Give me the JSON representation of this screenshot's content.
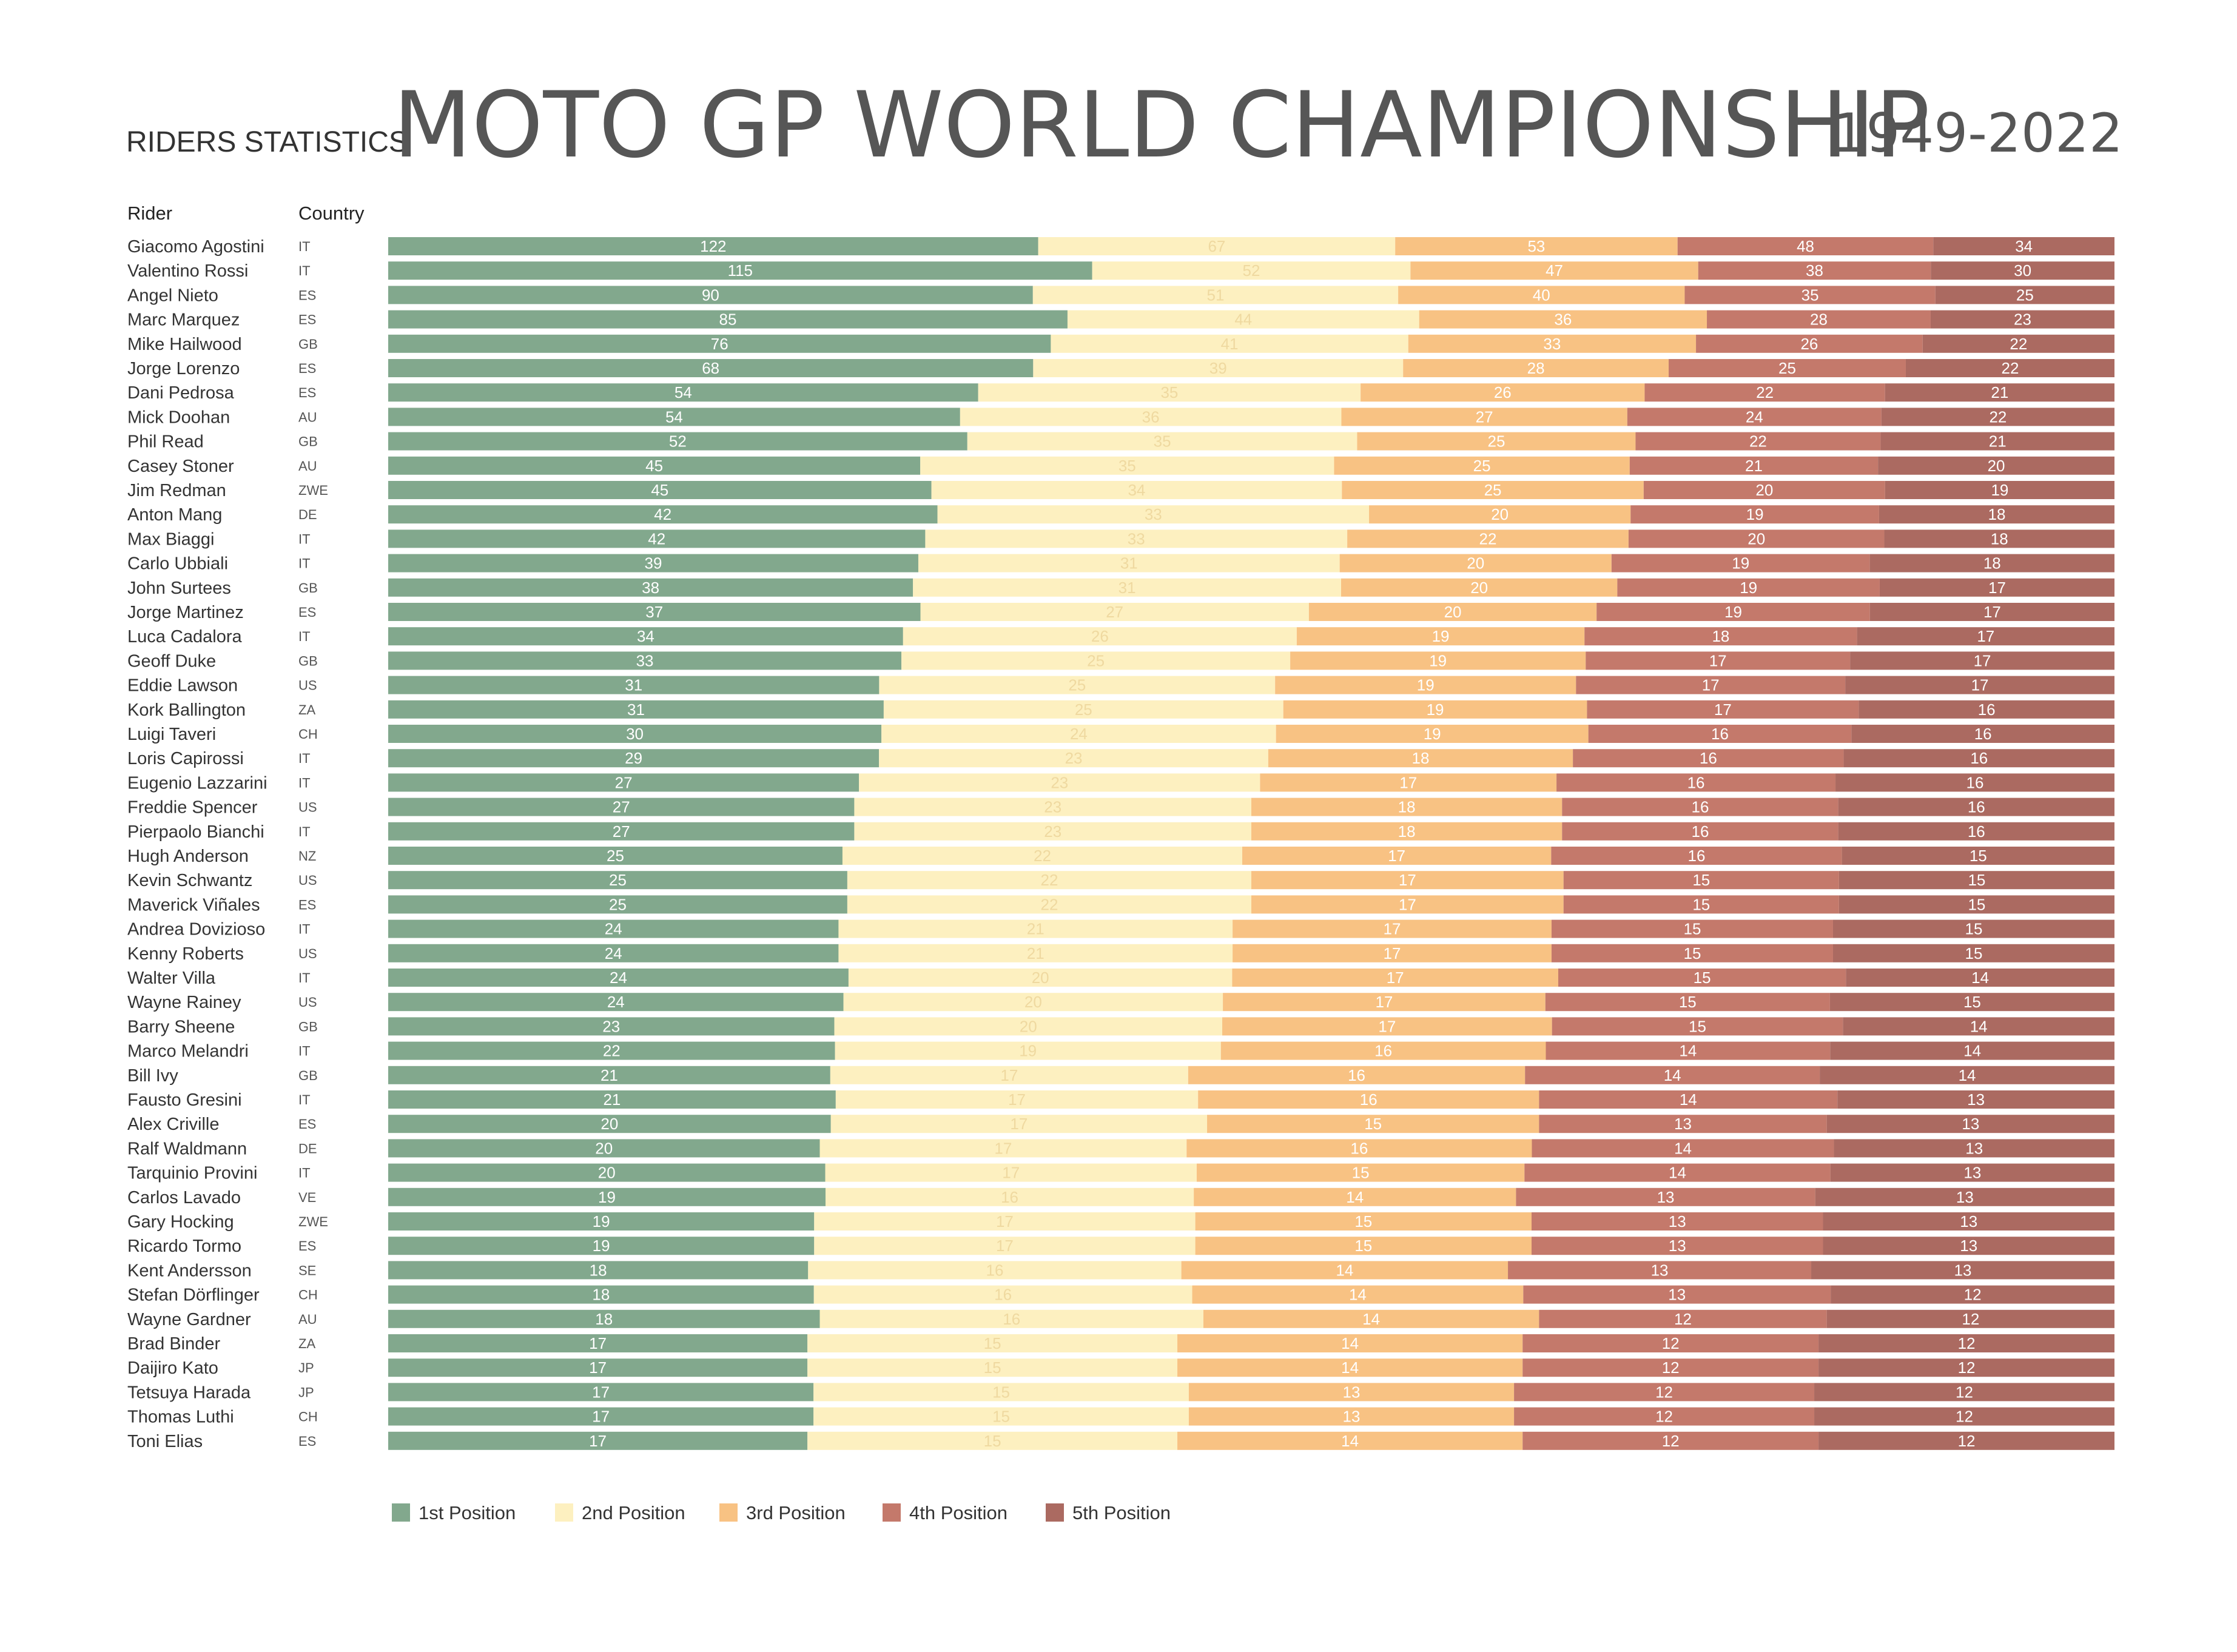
{
  "header": {
    "subtitle": "RIDERS STATISTICS",
    "title": "MOTO GP WORLD CHAMPIONSHIP",
    "years": "1949-2022"
  },
  "columns": {
    "rider": "Rider",
    "country": "Country"
  },
  "colors": {
    "1st Position": "#82a88d",
    "2nd Position": "#fdf0c0",
    "3rd Position": "#f8c283",
    "4th Position": "#c4796b",
    "5th Position": "#ab6a61",
    "title": "#565656",
    "text": "#333333",
    "label_dark": "#ffffff",
    "label_light": "#efd9a0"
  },
  "chart_data": {
    "type": "bar",
    "orientation": "horizontal",
    "stacking": "normalized-100%",
    "series": [
      {
        "name": "1st Position",
        "values": [
          122,
          115,
          90,
          85,
          76,
          68,
          54,
          54,
          52,
          45,
          45,
          42,
          42,
          39,
          38,
          37,
          34,
          33,
          31,
          31,
          30,
          29,
          27,
          27,
          27,
          25,
          25,
          25,
          24,
          24,
          24,
          24,
          23,
          22,
          21,
          21,
          20,
          20,
          20,
          19,
          19,
          19,
          18,
          18,
          18,
          17,
          17,
          17,
          17,
          17
        ]
      },
      {
        "name": "2nd Position",
        "values": [
          67,
          52,
          51,
          44,
          41,
          39,
          35,
          36,
          35,
          35,
          34,
          33,
          33,
          31,
          31,
          27,
          26,
          25,
          25,
          25,
          24,
          23,
          23,
          23,
          23,
          22,
          22,
          22,
          21,
          21,
          20,
          20,
          20,
          19,
          17,
          17,
          17,
          17,
          17,
          16,
          17,
          17,
          16,
          16,
          16,
          15,
          15,
          15,
          15,
          15
        ]
      },
      {
        "name": "3rd Position",
        "values": [
          53,
          47,
          40,
          36,
          33,
          28,
          26,
          27,
          25,
          25,
          25,
          20,
          22,
          20,
          20,
          20,
          19,
          19,
          19,
          19,
          19,
          18,
          17,
          18,
          18,
          17,
          17,
          17,
          17,
          17,
          17,
          17,
          17,
          16,
          16,
          16,
          15,
          16,
          15,
          14,
          15,
          15,
          14,
          14,
          14,
          14,
          14,
          13,
          13,
          14
        ]
      },
      {
        "name": "4th Position",
        "values": [
          48,
          38,
          35,
          28,
          26,
          25,
          22,
          24,
          22,
          21,
          20,
          19,
          20,
          19,
          19,
          19,
          18,
          17,
          17,
          17,
          16,
          16,
          16,
          16,
          16,
          16,
          15,
          15,
          15,
          15,
          15,
          15,
          15,
          14,
          14,
          14,
          13,
          14,
          14,
          13,
          13,
          13,
          13,
          13,
          12,
          12,
          12,
          12,
          12,
          12
        ]
      },
      {
        "name": "5th Position",
        "values": [
          34,
          30,
          25,
          23,
          22,
          22,
          21,
          22,
          21,
          20,
          19,
          18,
          18,
          18,
          17,
          17,
          17,
          17,
          17,
          16,
          16,
          16,
          16,
          16,
          16,
          15,
          15,
          15,
          15,
          15,
          14,
          15,
          14,
          14,
          14,
          13,
          13,
          13,
          13,
          13,
          13,
          13,
          13,
          12,
          12,
          12,
          12,
          12,
          12,
          12
        ]
      }
    ],
    "riders": [
      "Giacomo Agostini",
      "Valentino Rossi",
      "Angel Nieto",
      "Marc Marquez",
      "Mike Hailwood",
      "Jorge Lorenzo",
      "Dani Pedrosa",
      "Mick Doohan",
      "Phil Read",
      "Casey Stoner",
      "Jim Redman",
      "Anton Mang",
      "Max Biaggi",
      "Carlo Ubbiali",
      "John Surtees",
      "Jorge Martinez",
      "Luca Cadalora",
      "Geoff Duke",
      "Eddie Lawson",
      "Kork Ballington",
      "Luigi Taveri",
      "Loris Capirossi",
      "Eugenio Lazzarini",
      "Freddie Spencer",
      "Pierpaolo Bianchi",
      "Hugh Anderson",
      "Kevin Schwantz",
      "Maverick Viñales",
      "Andrea Dovizioso",
      "Kenny Roberts",
      "Walter Villa",
      "Wayne Rainey",
      "Barry Sheene",
      "Marco Melandri",
      "Bill Ivy",
      "Fausto Gresini",
      "Alex Criville",
      "Ralf Waldmann",
      "Tarquinio Provini",
      "Carlos Lavado",
      "Gary Hocking",
      "Ricardo Tormo",
      "Kent Andersson",
      "Stefan Dörflinger",
      "Wayne Gardner",
      "Brad Binder",
      "Daijiro Kato",
      "Tetsuya Harada",
      "Thomas Luthi",
      "Toni Elias"
    ],
    "countries": [
      "IT",
      "IT",
      "ES",
      "ES",
      "GB",
      "ES",
      "ES",
      "AU",
      "GB",
      "AU",
      "ZWE",
      "DE",
      "IT",
      "IT",
      "GB",
      "ES",
      "IT",
      "GB",
      "US",
      "ZA",
      "CH",
      "IT",
      "IT",
      "US",
      "IT",
      "NZ",
      "US",
      "ES",
      "IT",
      "US",
      "IT",
      "US",
      "GB",
      "IT",
      "GB",
      "IT",
      "ES",
      "DE",
      "IT",
      "VE",
      "ZWE",
      "ES",
      "SE",
      "CH",
      "AU",
      "ZA",
      "JP",
      "JP",
      "CH",
      "ES"
    ],
    "legend": [
      "1st Position",
      "2nd Position",
      "3rd Position",
      "4th Position",
      "5th Position"
    ],
    "legend_position": "bottom-left"
  }
}
